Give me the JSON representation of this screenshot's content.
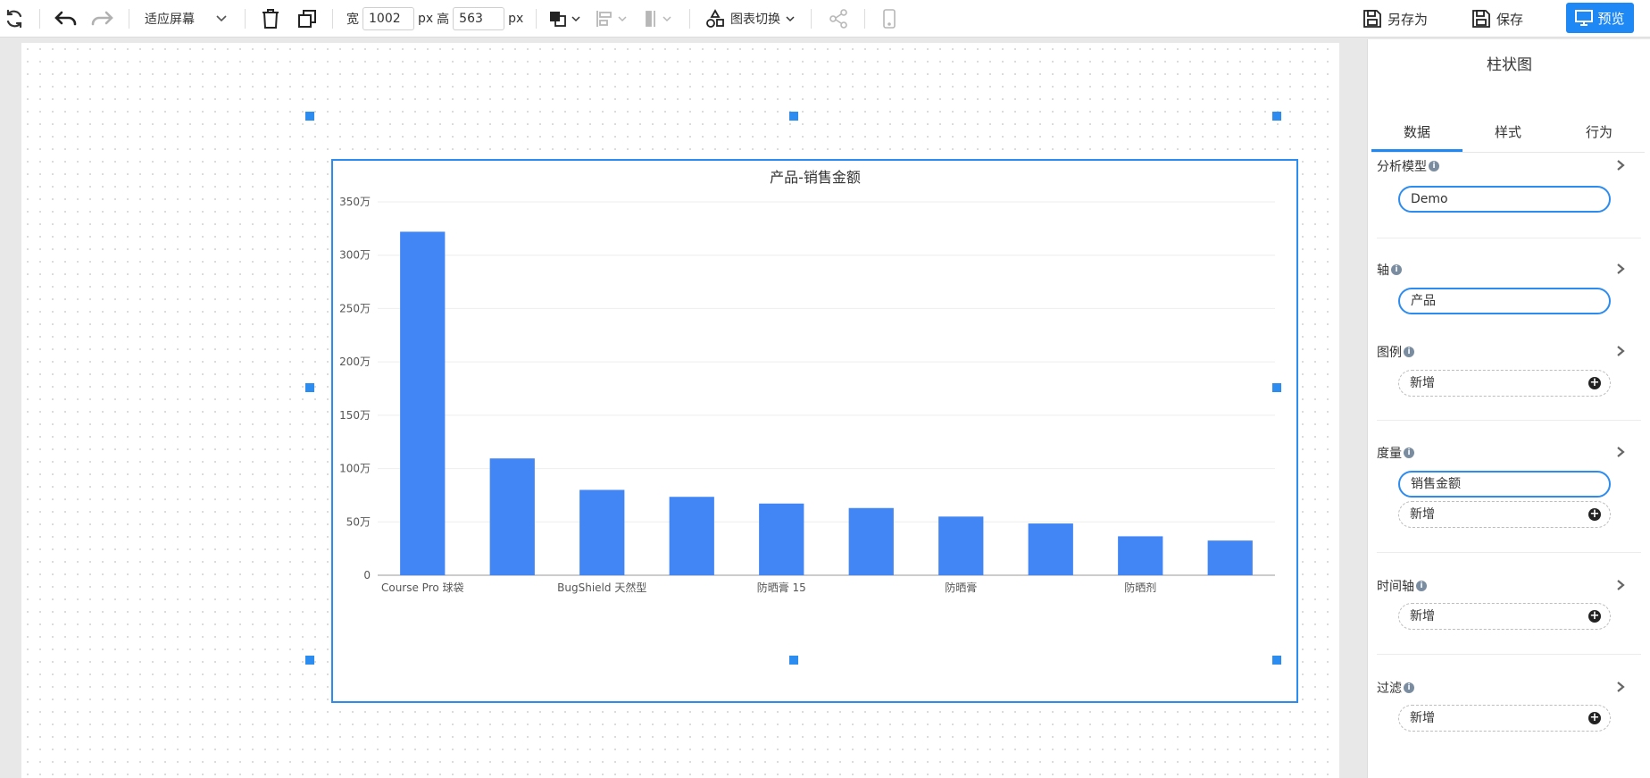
{
  "toolbar": {
    "fit_screen": "适应屏幕",
    "width_label": "宽",
    "width_value": "1002",
    "px_unit": "px",
    "height_label": "高",
    "height_value": "563",
    "chart_switch": "图表切换",
    "save_as": "另存为",
    "save": "保存",
    "preview": "预览"
  },
  "panel": {
    "title": "柱状图",
    "tabs": [
      "数据",
      "样式",
      "行为"
    ],
    "active_tab": "数据",
    "sections": {
      "model": {
        "title": "分析模型",
        "value": "Demo"
      },
      "axis": {
        "title": "轴",
        "value": "产品"
      },
      "legend": {
        "title": "图例",
        "add": "新增"
      },
      "measure": {
        "title": "度量",
        "value": "销售金额",
        "add": "新增"
      },
      "timeline": {
        "title": "时间轴",
        "add": "新增"
      },
      "filter": {
        "title": "过滤",
        "add": "新增"
      }
    },
    "info_icon": "i"
  },
  "chart_data": {
    "type": "bar",
    "title": "产品-销售金额",
    "categories": [
      "Course Pro 球袋",
      "",
      "BugShield 天然型",
      "",
      "防晒膏 15",
      "",
      "防晒膏",
      "",
      "防晒剂",
      ""
    ],
    "values": [
      3220000,
      1095000,
      800000,
      735000,
      672000,
      630000,
      550000,
      485000,
      365000,
      325000
    ],
    "ylim": [
      0,
      3500000
    ],
    "yticks": [
      "0",
      "50万",
      "100万",
      "150万",
      "200万",
      "250万",
      "300万",
      "350万"
    ],
    "ytick_values": [
      0,
      500000,
      1000000,
      1500000,
      2000000,
      2500000,
      3000000,
      3500000
    ],
    "xlabel": "",
    "ylabel": "",
    "grid": true,
    "bar_color": "#4285f4"
  },
  "colors": {
    "accent": "#1e88f5",
    "selection": "#2d8cf0",
    "bar": "#4285f4"
  }
}
